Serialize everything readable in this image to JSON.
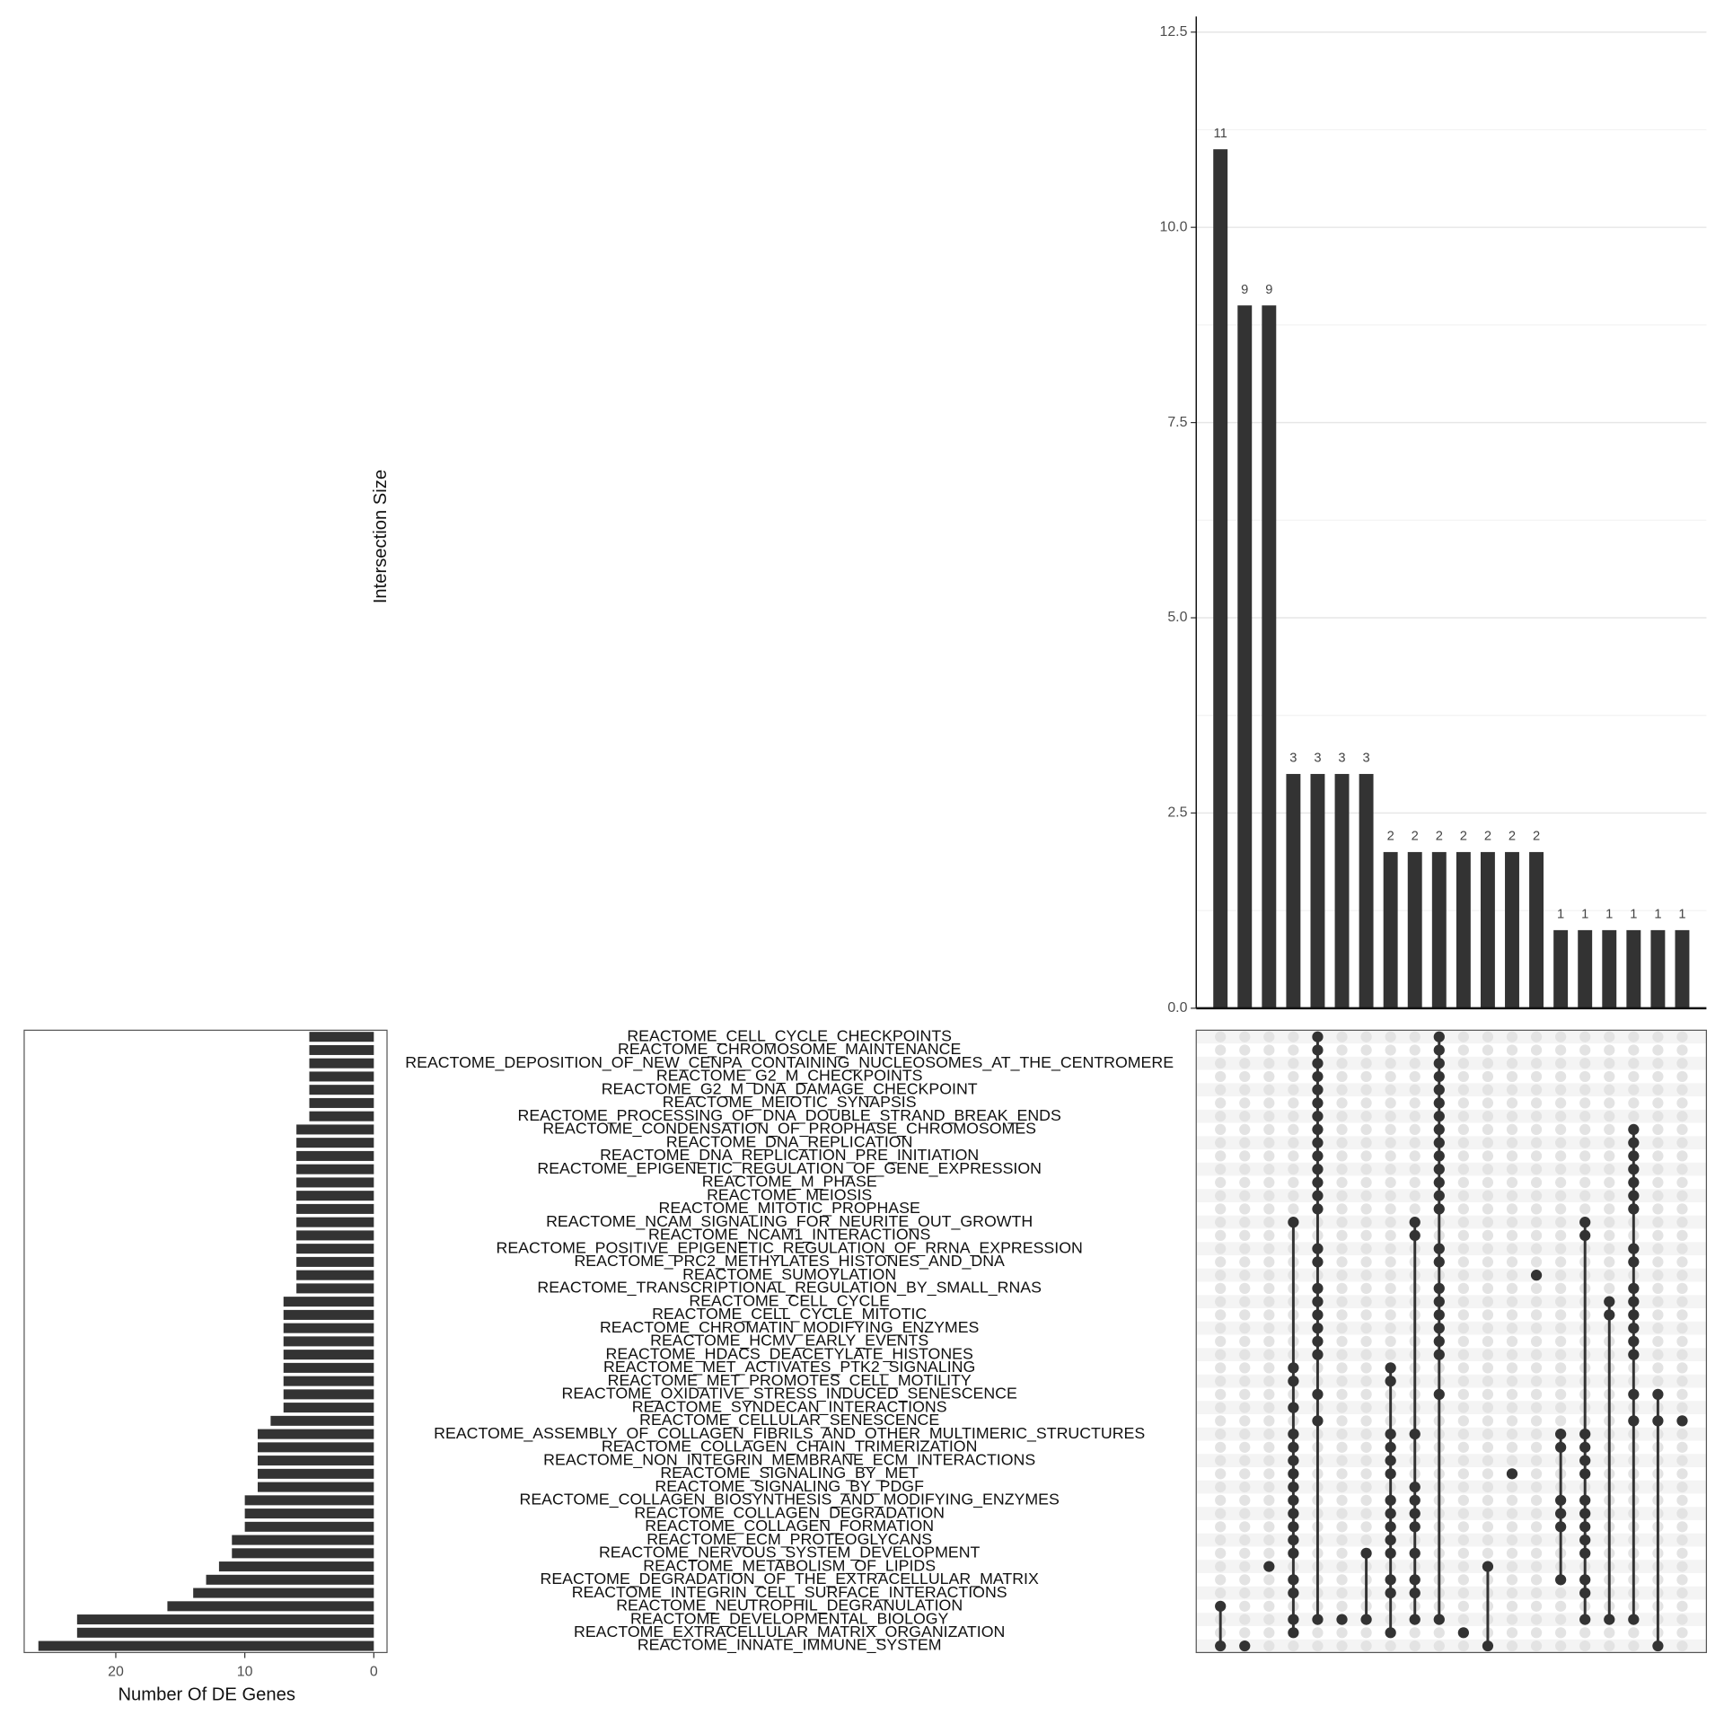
{
  "chart_data": {
    "type": "upset",
    "y_label": "Intersection Size",
    "ylim": [
      0,
      12.7
    ],
    "yticks": [
      {
        "value": 0,
        "label": "0.0"
      },
      2.5,
      {
        "value": 5,
        "label": "5.0"
      },
      7.5,
      {
        "value": 10,
        "label": "10.0"
      },
      12.5
    ],
    "bar_color": "#333333",
    "dot_empty_color": "#e3e3e3",
    "grid": true,
    "intersections": [
      {
        "size": 11,
        "sets": [
          43,
          46
        ]
      },
      {
        "size": 9,
        "sets": [
          46
        ]
      },
      {
        "size": 9,
        "sets": [
          40
        ]
      },
      {
        "size": 3,
        "sets": [
          14,
          25,
          26,
          28,
          30,
          31,
          32,
          33,
          34,
          35,
          36,
          37,
          38,
          39,
          41,
          42,
          44,
          45
        ]
      },
      {
        "size": 3,
        "sets": [
          0,
          1,
          2,
          3,
          4,
          5,
          6,
          7,
          8,
          9,
          10,
          11,
          12,
          13,
          16,
          17,
          19,
          20,
          21,
          22,
          23,
          24,
          27,
          29,
          44
        ]
      },
      {
        "size": 3,
        "sets": [
          44
        ]
      },
      {
        "size": 3,
        "sets": [
          39,
          44
        ]
      },
      {
        "size": 2,
        "sets": [
          25,
          26,
          30,
          31,
          32,
          33,
          35,
          36,
          37,
          38,
          39,
          41,
          42,
          45
        ]
      },
      {
        "size": 2,
        "sets": [
          14,
          15,
          30,
          34,
          35,
          36,
          37,
          39,
          41,
          42,
          44
        ]
      },
      {
        "size": 2,
        "sets": [
          0,
          1,
          2,
          3,
          4,
          5,
          6,
          7,
          8,
          9,
          10,
          11,
          12,
          13,
          16,
          17,
          19,
          20,
          21,
          22,
          23,
          24,
          27,
          44
        ]
      },
      {
        "size": 2,
        "sets": [
          45
        ]
      },
      {
        "size": 2,
        "sets": [
          40,
          46
        ]
      },
      {
        "size": 2,
        "sets": [
          33
        ]
      },
      {
        "size": 2,
        "sets": [
          18
        ]
      },
      {
        "size": 1,
        "sets": [
          30,
          31,
          35,
          36,
          37,
          41
        ]
      },
      {
        "size": 1,
        "sets": [
          14,
          15,
          30,
          31,
          32,
          33,
          35,
          36,
          37,
          38,
          39,
          41,
          42,
          44
        ]
      },
      {
        "size": 1,
        "sets": [
          20,
          21,
          44
        ]
      },
      {
        "size": 1,
        "sets": [
          7,
          8,
          9,
          10,
          11,
          12,
          13,
          16,
          17,
          19,
          20,
          21,
          22,
          23,
          24,
          27,
          29,
          44
        ]
      },
      {
        "size": 1,
        "sets": [
          27,
          29,
          46
        ]
      },
      {
        "size": 1,
        "sets": [
          29
        ]
      }
    ],
    "set_size_label": "Number Of DE Genes",
    "set_size_xlim": [
      0,
      27.1
    ],
    "set_size_xticks": [
      0,
      10,
      20
    ],
    "sets": [
      {
        "name": "REACTOME_CELL_CYCLE_CHECKPOINTS",
        "size": 5
      },
      {
        "name": "REACTOME_CHROMOSOME_MAINTENANCE",
        "size": 5
      },
      {
        "name": "REACTOME_DEPOSITION_OF_NEW_CENPA_CONTAINING_NUCLEOSOMES_AT_THE_CENTROMERE",
        "size": 5
      },
      {
        "name": "REACTOME_G2_M_CHECKPOINTS",
        "size": 5
      },
      {
        "name": "REACTOME_G2_M_DNA_DAMAGE_CHECKPOINT",
        "size": 5
      },
      {
        "name": "REACTOME_MEIOTIC_SYNAPSIS",
        "size": 5
      },
      {
        "name": "REACTOME_PROCESSING_OF_DNA_DOUBLE_STRAND_BREAK_ENDS",
        "size": 5
      },
      {
        "name": "REACTOME_CONDENSATION_OF_PROPHASE_CHROMOSOMES",
        "size": 6
      },
      {
        "name": "REACTOME_DNA_REPLICATION",
        "size": 6
      },
      {
        "name": "REACTOME_DNA_REPLICATION_PRE_INITIATION",
        "size": 6
      },
      {
        "name": "REACTOME_EPIGENETIC_REGULATION_OF_GENE_EXPRESSION",
        "size": 6
      },
      {
        "name": "REACTOME_M_PHASE",
        "size": 6
      },
      {
        "name": "REACTOME_MEIOSIS",
        "size": 6
      },
      {
        "name": "REACTOME_MITOTIC_PROPHASE",
        "size": 6
      },
      {
        "name": "REACTOME_NCAM_SIGNALING_FOR_NEURITE_OUT_GROWTH",
        "size": 6
      },
      {
        "name": "REACTOME_NCAM1_INTERACTIONS",
        "size": 6
      },
      {
        "name": "REACTOME_POSITIVE_EPIGENETIC_REGULATION_OF_RRNA_EXPRESSION",
        "size": 6
      },
      {
        "name": "REACTOME_PRC2_METHYLATES_HISTONES_AND_DNA",
        "size": 6
      },
      {
        "name": "REACTOME_SUMOYLATION",
        "size": 6
      },
      {
        "name": "REACTOME_TRANSCRIPTIONAL_REGULATION_BY_SMALL_RNAS",
        "size": 6
      },
      {
        "name": "REACTOME_CELL_CYCLE",
        "size": 7
      },
      {
        "name": "REACTOME_CELL_CYCLE_MITOTIC",
        "size": 7
      },
      {
        "name": "REACTOME_CHROMATIN_MODIFYING_ENZYMES",
        "size": 7
      },
      {
        "name": "REACTOME_HCMV_EARLY_EVENTS",
        "size": 7
      },
      {
        "name": "REACTOME_HDACS_DEACETYLATE_HISTONES",
        "size": 7
      },
      {
        "name": "REACTOME_MET_ACTIVATES_PTK2_SIGNALING",
        "size": 7
      },
      {
        "name": "REACTOME_MET_PROMOTES_CELL_MOTILITY",
        "size": 7
      },
      {
        "name": "REACTOME_OXIDATIVE_STRESS_INDUCED_SENESCENCE",
        "size": 7
      },
      {
        "name": "REACTOME_SYNDECAN_INTERACTIONS",
        "size": 7
      },
      {
        "name": "REACTOME_CELLULAR_SENESCENCE",
        "size": 8
      },
      {
        "name": "REACTOME_ASSEMBLY_OF_COLLAGEN_FIBRILS_AND_OTHER_MULTIMERIC_STRUCTURES",
        "size": 9
      },
      {
        "name": "REACTOME_COLLAGEN_CHAIN_TRIMERIZATION",
        "size": 9
      },
      {
        "name": "REACTOME_NON_INTEGRIN_MEMBRANE_ECM_INTERACTIONS",
        "size": 9
      },
      {
        "name": "REACTOME_SIGNALING_BY_MET",
        "size": 9
      },
      {
        "name": "REACTOME_SIGNALING_BY_PDGF",
        "size": 9
      },
      {
        "name": "REACTOME_COLLAGEN_BIOSYNTHESIS_AND_MODIFYING_ENZYMES",
        "size": 10
      },
      {
        "name": "REACTOME_COLLAGEN_DEGRADATION",
        "size": 10
      },
      {
        "name": "REACTOME_COLLAGEN_FORMATION",
        "size": 10
      },
      {
        "name": "REACTOME_ECM_PROTEOGLYCANS",
        "size": 11
      },
      {
        "name": "REACTOME_NERVOUS_SYSTEM_DEVELOPMENT",
        "size": 11
      },
      {
        "name": "REACTOME_METABOLISM_OF_LIPIDS",
        "size": 12
      },
      {
        "name": "REACTOME_DEGRADATION_OF_THE_EXTRACELLULAR_MATRIX",
        "size": 13
      },
      {
        "name": "REACTOME_INTEGRIN_CELL_SURFACE_INTERACTIONS",
        "size": 14
      },
      {
        "name": "REACTOME_NEUTROPHIL_DEGRANULATION",
        "size": 16
      },
      {
        "name": "REACTOME_DEVELOPMENTAL_BIOLOGY",
        "size": 23
      },
      {
        "name": "REACTOME_EXTRACELLULAR_MATRIX_ORGANIZATION",
        "size": 23
      },
      {
        "name": "REACTOME_INNATE_IMMUNE_SYSTEM",
        "size": 26
      }
    ]
  }
}
